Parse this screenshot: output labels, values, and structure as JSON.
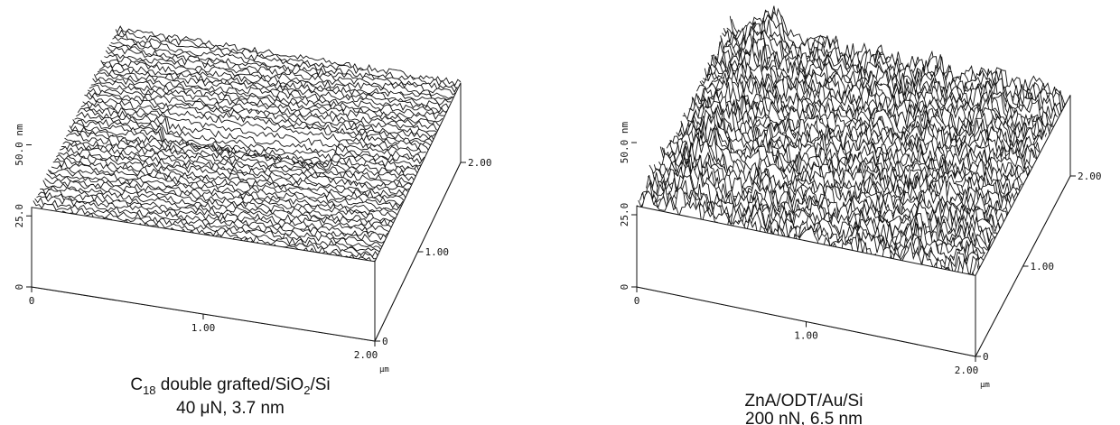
{
  "panels": [
    {
      "zticks": [
        {
          "value": 0,
          "label": "0"
        },
        {
          "value": 25,
          "label": "25.0"
        },
        {
          "value": 50,
          "label": "50.0 nm"
        }
      ],
      "xticks": [
        {
          "value": 0,
          "label": "0"
        },
        {
          "value": 1,
          "label": "1.00"
        },
        {
          "value": 2,
          "label": "2.00"
        }
      ],
      "yticks": [
        {
          "value": 0,
          "label": "0"
        },
        {
          "value": 1,
          "label": "1.00"
        },
        {
          "value": 2,
          "label": "2.00"
        }
      ],
      "unit": "μm",
      "caption": [
        [
          {
            "text": "C"
          },
          {
            "sub": "18"
          },
          {
            "text": " double grafted/SiO"
          },
          {
            "sub": "2"
          },
          {
            "text": "/Si"
          }
        ],
        [
          {
            "text": "40 μN, 3.7 nm"
          }
        ]
      ]
    },
    {
      "zticks": [
        {
          "value": 0,
          "label": "0"
        },
        {
          "value": 25,
          "label": "25.0"
        },
        {
          "value": 50,
          "label": "50.0 nm"
        }
      ],
      "xticks": [
        {
          "value": 0,
          "label": "0"
        },
        {
          "value": 1,
          "label": "1.00"
        },
        {
          "value": 2,
          "label": "2.00"
        }
      ],
      "yticks": [
        {
          "value": 0,
          "label": "0"
        },
        {
          "value": 1,
          "label": "1.00"
        },
        {
          "value": 2,
          "label": "2.00"
        }
      ],
      "unit": "μm",
      "caption": [
        [
          {
            "text": "ZnA/ODT/Au/Si"
          }
        ],
        [
          {
            "text": "200 nN, 6.5 nm"
          }
        ]
      ]
    }
  ]
}
